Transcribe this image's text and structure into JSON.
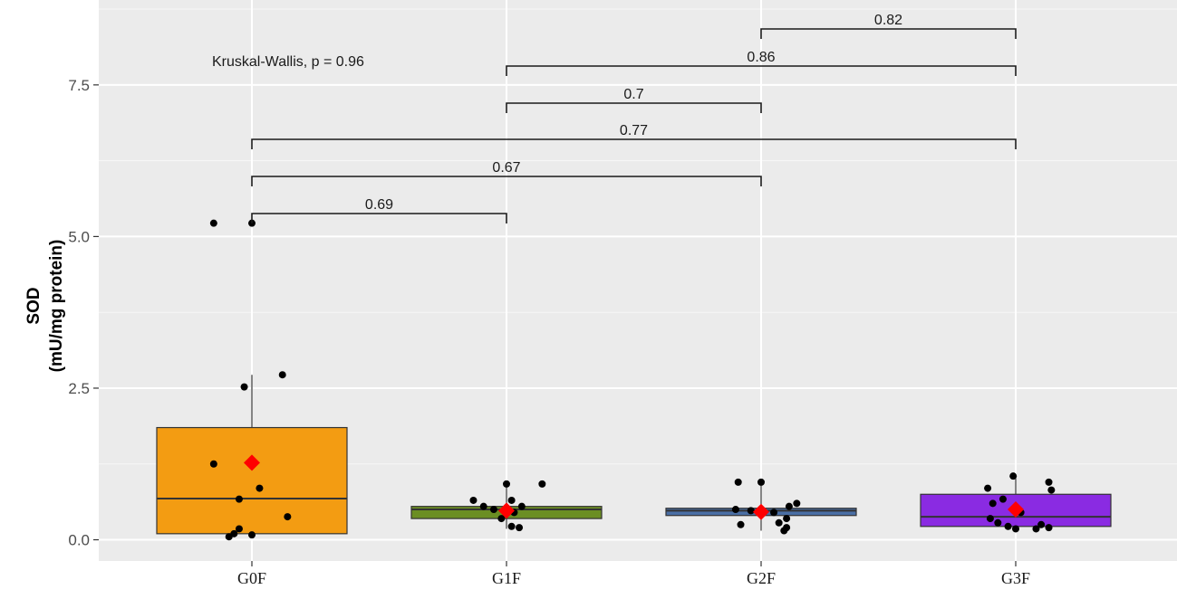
{
  "chart_data": {
    "type": "boxplot",
    "title": "",
    "xlabel": "",
    "ylabel_line1": "SOD",
    "ylabel_line2": "(mU/mg protein)",
    "ylim": [
      -0.35,
      8.9
    ],
    "yticks": [
      0.0,
      2.5,
      5.0,
      7.5
    ],
    "ytick_labels": [
      "0.0",
      "2.5",
      "5.0",
      "7.5"
    ],
    "grid": true,
    "annotation": "Kruskal-Wallis, p = 0.96",
    "categories": [
      "G0F",
      "G1F",
      "G2F",
      "G3F"
    ],
    "boxes": [
      {
        "group": "G0F",
        "color": "#F39C12",
        "q1": 0.1,
        "median": 0.68,
        "q3": 1.85,
        "whisker_low": 0.03,
        "whisker_high": 2.72,
        "mean": 1.27,
        "points": [
          [
            -0.15,
            5.22
          ],
          [
            0,
            5.22
          ],
          [
            0.12,
            2.72
          ],
          [
            -0.03,
            2.52
          ],
          [
            -0.15,
            1.25
          ],
          [
            0.03,
            0.85
          ],
          [
            -0.05,
            0.67
          ],
          [
            0.14,
            0.38
          ],
          [
            -0.05,
            0.18
          ],
          [
            -0.07,
            0.1
          ],
          [
            0,
            0.08
          ],
          [
            -0.09,
            0.05
          ]
        ]
      },
      {
        "group": "G1F",
        "color": "#6B8E23",
        "q1": 0.35,
        "median": 0.5,
        "q3": 0.55,
        "whisker_low": 0.18,
        "whisker_high": 0.9,
        "mean": 0.48,
        "points": [
          [
            0,
            0.92
          ],
          [
            0.14,
            0.92
          ],
          [
            -0.13,
            0.65
          ],
          [
            0.02,
            0.65
          ],
          [
            -0.09,
            0.55
          ],
          [
            0.06,
            0.55
          ],
          [
            -0.05,
            0.5
          ],
          [
            0.03,
            0.45
          ],
          [
            -0.02,
            0.35
          ],
          [
            0.02,
            0.22
          ],
          [
            0.05,
            0.2
          ]
        ]
      },
      {
        "group": "G2F",
        "color": "#4A6FA5",
        "q1": 0.4,
        "median": 0.48,
        "q3": 0.52,
        "whisker_low": 0.15,
        "whisker_high": 0.93,
        "mean": 0.46,
        "points": [
          [
            -0.09,
            0.95
          ],
          [
            0,
            0.95
          ],
          [
            0.14,
            0.6
          ],
          [
            0.11,
            0.55
          ],
          [
            -0.1,
            0.5
          ],
          [
            -0.04,
            0.48
          ],
          [
            0.05,
            0.45
          ],
          [
            0.1,
            0.35
          ],
          [
            0.07,
            0.28
          ],
          [
            -0.08,
            0.25
          ],
          [
            0.1,
            0.2
          ],
          [
            0.09,
            0.15
          ]
        ]
      },
      {
        "group": "G3F",
        "color": "#8A2BE2",
        "q1": 0.22,
        "median": 0.38,
        "q3": 0.75,
        "whisker_low": 0.18,
        "whisker_high": 1.02,
        "mean": 0.5,
        "points": [
          [
            -0.01,
            1.05
          ],
          [
            0.13,
            0.95
          ],
          [
            -0.11,
            0.85
          ],
          [
            0.14,
            0.82
          ],
          [
            -0.05,
            0.67
          ],
          [
            -0.09,
            0.6
          ],
          [
            0.02,
            0.45
          ],
          [
            -0.1,
            0.35
          ],
          [
            -0.07,
            0.28
          ],
          [
            0.1,
            0.25
          ],
          [
            -0.03,
            0.22
          ],
          [
            0.13,
            0.2
          ],
          [
            0.08,
            0.18
          ],
          [
            0,
            0.18
          ]
        ]
      }
    ],
    "comparisons": [
      {
        "from": "G2F",
        "to": "G3F",
        "p": "0.82"
      },
      {
        "from": "G1F",
        "to": "G3F",
        "p": "0.86"
      },
      {
        "from": "G1F",
        "to": "G2F",
        "p": "0.7"
      },
      {
        "from": "G0F",
        "to": "G3F",
        "p": "0.77"
      },
      {
        "from": "G0F",
        "to": "G2F",
        "p": "0.67"
      },
      {
        "from": "G0F",
        "to": "G1F",
        "p": "0.69"
      }
    ],
    "mean_marker_color": "#FF0000"
  }
}
